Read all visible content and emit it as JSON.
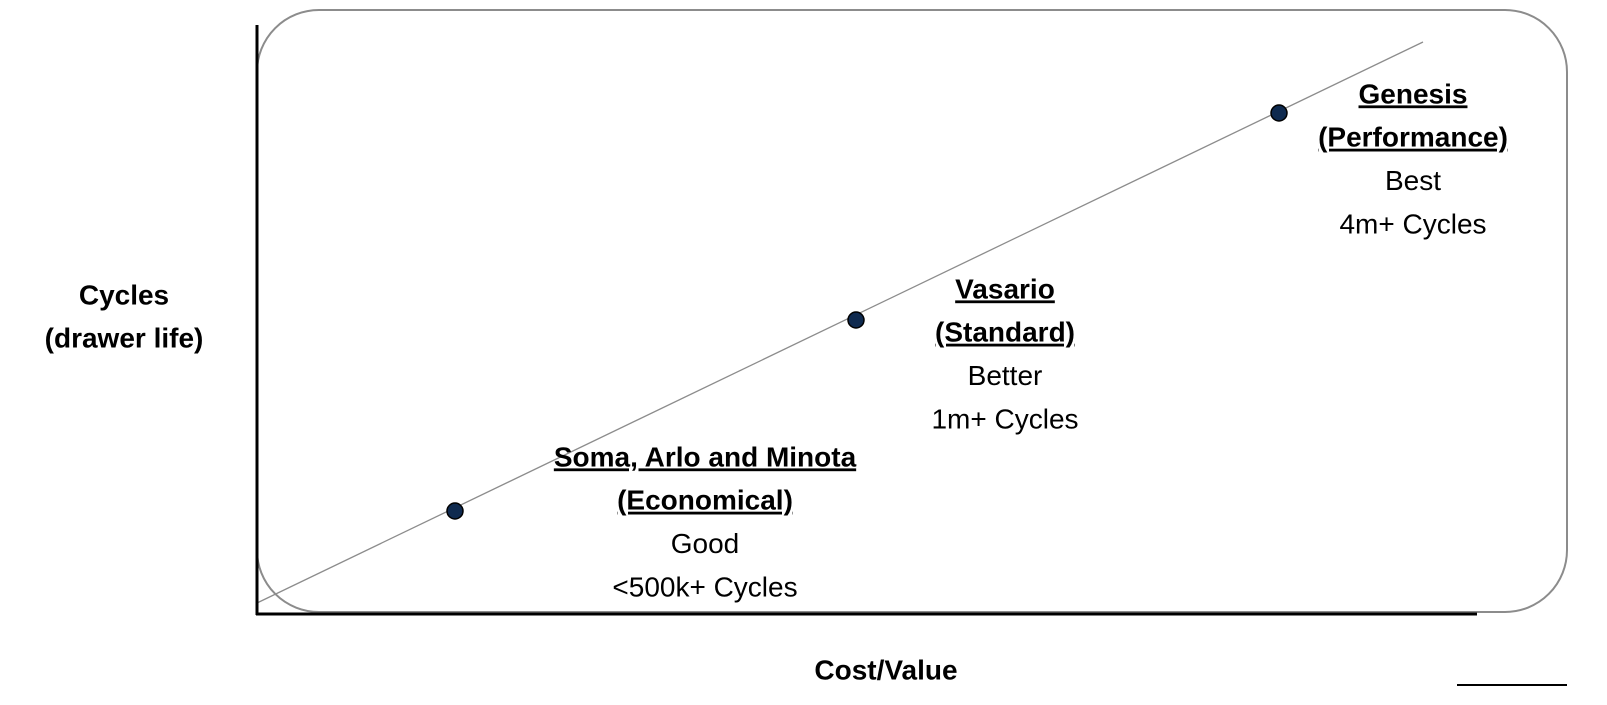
{
  "y_axis_label": [
    "Cycles",
    "(drawer life)"
  ],
  "x_axis_label": "Cost/Value",
  "points": [
    {
      "title": "Soma, Arlo and Minota",
      "subtitle": "(Economical)",
      "rating": "Good",
      "cycles": "<500k+ Cycles"
    },
    {
      "title": "Vasario",
      "subtitle": "(Standard)",
      "rating": "Better",
      "cycles": "1m+ Cycles"
    },
    {
      "title": "Genesis",
      "subtitle": "(Performance)",
      "rating": "Best",
      "cycles": "4m+ Cycles"
    }
  ]
}
